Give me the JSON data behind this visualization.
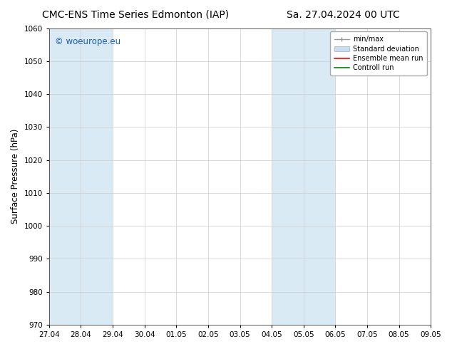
{
  "title_left": "CMC-ENS Time Series Edmonton (IAP)",
  "title_right": "Sa. 27.04.2024 00 UTC",
  "ylabel": "Surface Pressure (hPa)",
  "ylim": [
    970,
    1060
  ],
  "yticks": [
    970,
    980,
    990,
    1000,
    1010,
    1020,
    1030,
    1040,
    1050,
    1060
  ],
  "xtick_labels": [
    "27.04",
    "28.04",
    "29.04",
    "30.04",
    "01.05",
    "02.05",
    "03.05",
    "04.05",
    "05.05",
    "06.05",
    "07.05",
    "08.05",
    "09.05"
  ],
  "num_xticks": 13,
  "shaded_bands": [
    {
      "xstart_idx": 0,
      "xend_idx": 2
    },
    {
      "xstart_idx": 7,
      "xend_idx": 9
    }
  ],
  "shaded_color": "#daeaf5",
  "watermark": "© woeurope.eu",
  "watermark_color": "#1a5faa",
  "legend_items": [
    {
      "label": "min/max",
      "color": "#999999"
    },
    {
      "label": "Standard deviation",
      "color": "#c8dff0"
    },
    {
      "label": "Ensemble mean run",
      "color": "red"
    },
    {
      "label": "Controll run",
      "color": "green"
    }
  ],
  "bg_color": "#ffffff",
  "plot_bg_color": "#ffffff",
  "grid_color": "#cccccc",
  "title_fontsize": 10,
  "tick_fontsize": 7.5,
  "ylabel_fontsize": 8.5,
  "watermark_fontsize": 8.5,
  "legend_fontsize": 7
}
